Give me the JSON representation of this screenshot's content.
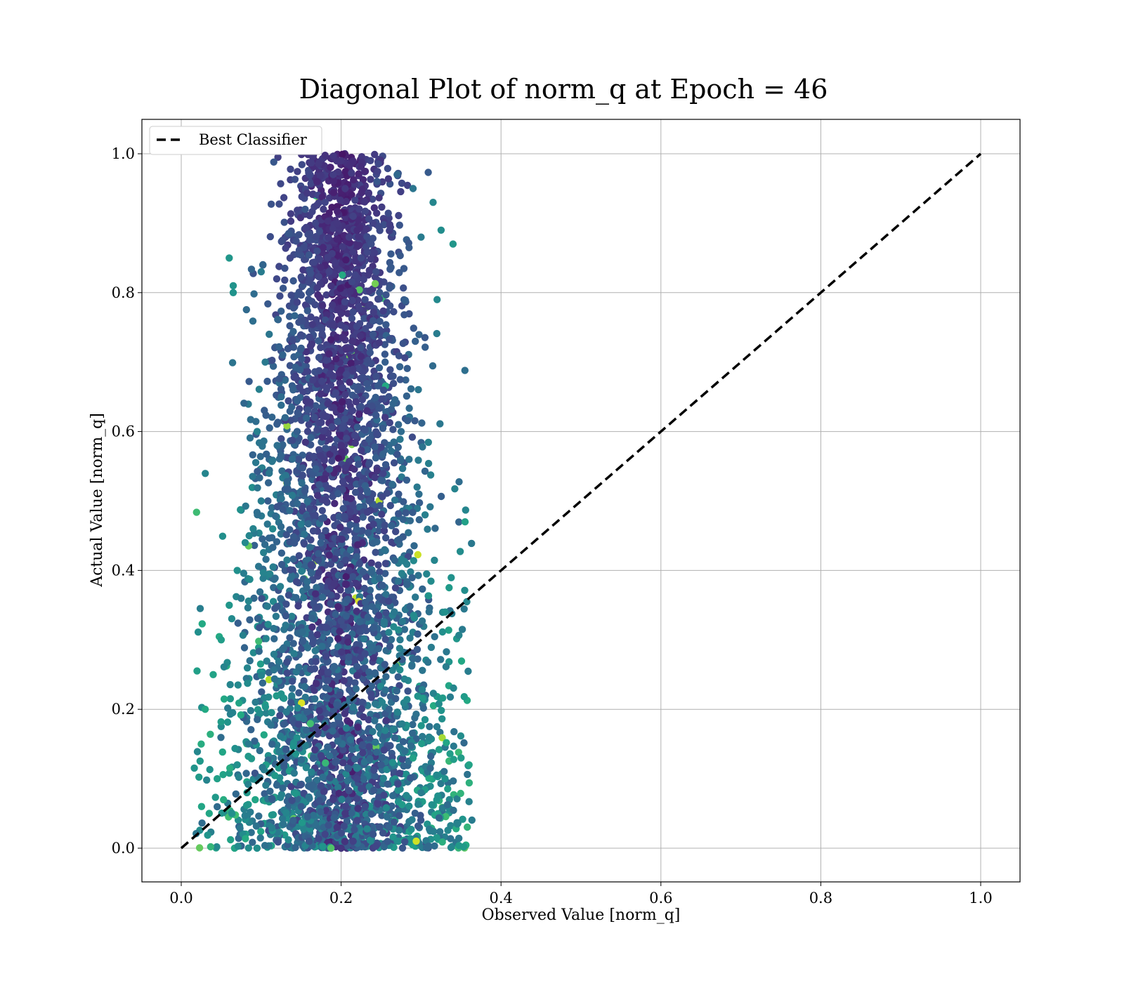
{
  "chart_data": {
    "type": "scatter",
    "title": "Diagonal Plot of norm_q at Epoch = 46",
    "xlabel": "Observed Value [norm_q]",
    "ylabel": "Actual Value [norm_q]",
    "xlim": [
      -0.05,
      1.05
    ],
    "ylim": [
      -0.05,
      1.05
    ],
    "grid": true,
    "xticks": [
      "0.0",
      "0.2",
      "0.4",
      "0.6",
      "0.8",
      "1.0"
    ],
    "yticks": [
      "0.0",
      "0.2",
      "0.4",
      "0.6",
      "0.8",
      "1.0"
    ],
    "xtick_values": [
      0.0,
      0.2,
      0.4,
      0.6,
      0.8,
      1.0
    ],
    "ytick_values": [
      0.0,
      0.2,
      0.4,
      0.6,
      0.8,
      1.0
    ],
    "legend": {
      "placement": "top-left",
      "entries": [
        {
          "label": "Best Classifier",
          "style": "dashed",
          "color": "#000000"
        }
      ]
    },
    "reference_line": {
      "name": "Best Classifier",
      "x": [
        0.0,
        1.0
      ],
      "y": [
        0.0,
        1.0
      ],
      "style": "dashed",
      "color": "#000000"
    },
    "colormap": "viridis",
    "scatter_summary": {
      "x_range": [
        0.01,
        0.37
      ],
      "y_range": [
        0.0,
        1.0
      ],
      "x_center": 0.2
    },
    "series": [
      {
        "x": [
          0.2,
          0.19,
          0.205,
          0.18,
          0.215,
          0.195,
          0.21,
          0.17,
          0.225,
          0.185,
          0.16,
          0.23,
          0.2,
          0.175,
          0.24,
          0.15,
          0.255,
          0.19,
          0.14,
          0.265,
          0.13,
          0.275,
          0.12,
          0.285,
          0.11,
          0.295,
          0.1,
          0.305,
          0.09,
          0.08,
          0.07,
          0.06,
          0.05,
          0.04,
          0.03,
          0.025,
          0.22,
          0.25,
          0.28,
          0.31,
          0.33,
          0.35,
          0.36,
          0.3,
          0.26,
          0.165,
          0.21,
          0.235,
          0.145,
          0.125,
          0.105,
          0.085,
          0.065,
          0.045,
          0.035,
          0.125,
          0.07,
          0.3,
          0.34,
          0.355,
          0.23,
          0.33,
          0.06,
          0.065,
          0.1,
          0.095,
          0.11,
          0.155,
          0.245,
          0.27,
          0.29,
          0.315,
          0.325,
          0.32,
          0.18,
          0.205,
          0.215,
          0.195,
          0.2,
          0.19,
          0.175,
          0.22,
          0.23,
          0.24,
          0.26,
          0.16,
          0.15,
          0.14
        ],
        "y": [
          0.99,
          0.97,
          0.95,
          0.93,
          0.91,
          0.9,
          0.88,
          0.86,
          0.85,
          0.83,
          0.8,
          0.79,
          0.77,
          0.75,
          0.74,
          0.72,
          0.7,
          0.68,
          0.66,
          0.64,
          0.62,
          0.6,
          0.58,
          0.56,
          0.54,
          0.52,
          0.5,
          0.48,
          0.46,
          0.44,
          0.4,
          0.35,
          0.3,
          0.25,
          0.2,
          0.15,
          0.1,
          0.12,
          0.14,
          0.16,
          0.1,
          0.13,
          0.12,
          0.08,
          0.2,
          0.3,
          0.4,
          0.5,
          0.6,
          0.65,
          0.7,
          0.45,
          0.8,
          0.1,
          0.05,
          0.13,
          0.12,
          0.88,
          0.87,
          0.47,
          0.28,
          0.34,
          0.85,
          0.81,
          0.83,
          0.6,
          0.74,
          0.92,
          0.96,
          0.97,
          0.95,
          0.93,
          0.89,
          0.79,
          0.02,
          0.05,
          0.01,
          0.03,
          0.0,
          0.07,
          0.09,
          0.04,
          0.06,
          0.02,
          0.03,
          0.01,
          0.06,
          0.04
        ]
      }
    ]
  }
}
